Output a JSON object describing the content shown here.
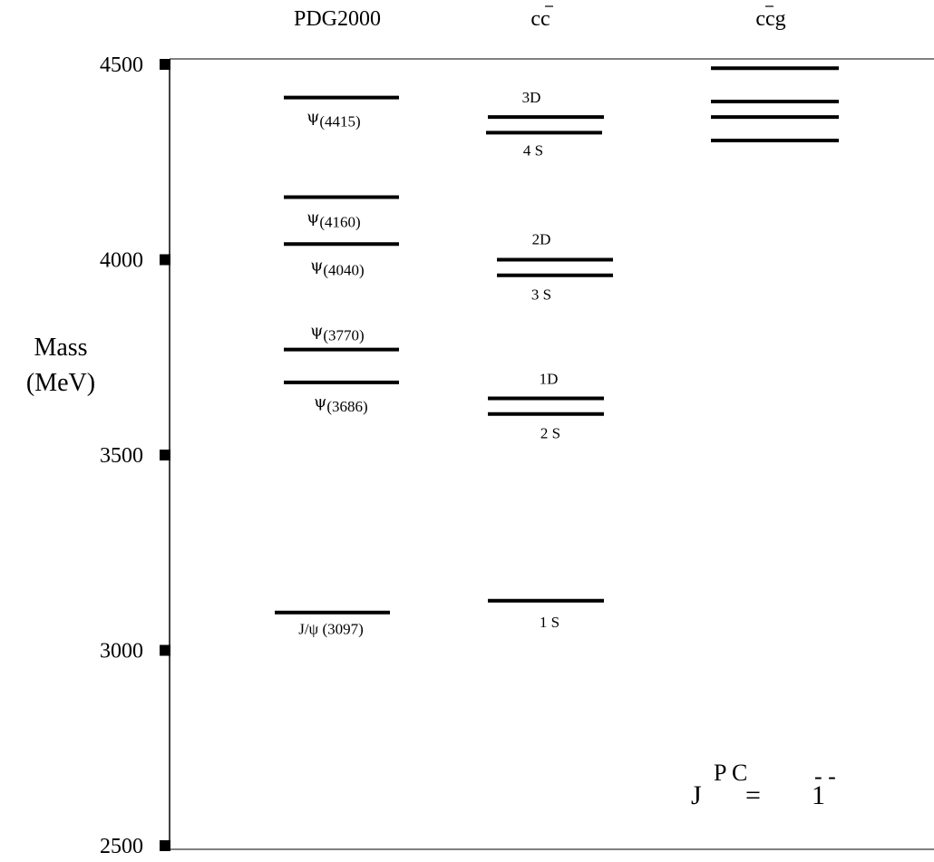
{
  "chart_data": {
    "type": "level-diagram",
    "ylabel_line1": "Mass",
    "ylabel_line2": "(MeV)",
    "ylim": [
      2500,
      4500
    ],
    "yticks": [
      4500,
      4000,
      3500,
      3000,
      2500
    ],
    "columns": [
      {
        "key": "pdg",
        "header": "PDG2000"
      },
      {
        "key": "cc",
        "header_base": "c",
        "header_bar": "c",
        "header_suffix": ""
      },
      {
        "key": "ccg",
        "header_base": "c",
        "header_bar": "c",
        "header_suffix": "g"
      }
    ],
    "pdg_levels": [
      {
        "mass": 4415,
        "sym": "ψ",
        "label": "(4415)"
      },
      {
        "mass": 4160,
        "sym": "ψ",
        "label": "(4160)"
      },
      {
        "mass": 4040,
        "sym": "ψ",
        "label": "(4040)"
      },
      {
        "mass": 3770,
        "sym": "ψ",
        "label": "(3770)"
      },
      {
        "mass": 3686,
        "sym": "ψ",
        "label": "(3686)"
      },
      {
        "mass": 3097,
        "sym": "J/ψ",
        "label": " (3097)"
      }
    ],
    "cc_levels": [
      {
        "mass": 4365,
        "label": "3D"
      },
      {
        "mass": 4325,
        "label": "4 S"
      },
      {
        "mass": 4000,
        "label": "2D"
      },
      {
        "mass": 3960,
        "label": "3 S"
      },
      {
        "mass": 3645,
        "label": "1D"
      },
      {
        "mass": 3605,
        "label": "2 S"
      },
      {
        "mass": 3127,
        "label": "1 S"
      }
    ],
    "ccg_levels": [
      {
        "mass": 4490
      },
      {
        "mass": 4405
      },
      {
        "mass": 4365
      },
      {
        "mass": 4305
      }
    ],
    "annotation": {
      "base": "J",
      "superscript": "P C",
      "equals": "=",
      "value": "1",
      "value_superscript": "- -"
    }
  }
}
